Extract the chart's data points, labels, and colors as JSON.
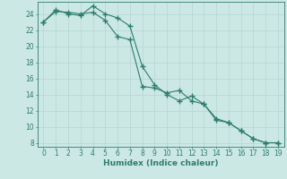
{
  "line1_x": [
    0,
    1,
    2,
    3,
    4,
    5,
    6,
    7,
    8,
    9,
    10,
    11,
    12,
    13,
    14,
    15,
    16,
    17,
    18,
    19
  ],
  "line1_y": [
    23.0,
    24.5,
    24.0,
    23.8,
    25.0,
    24.0,
    23.5,
    22.5,
    17.5,
    15.2,
    14.0,
    13.2,
    13.8,
    12.8,
    10.8,
    10.5,
    9.5,
    8.5,
    8.0,
    8.0
  ],
  "line2_x": [
    0,
    1,
    2,
    3,
    4,
    5,
    6,
    7,
    8,
    9,
    10,
    11,
    12,
    13,
    14,
    15,
    16,
    17,
    18,
    19
  ],
  "line2_y": [
    23.0,
    24.3,
    24.2,
    24.0,
    24.2,
    23.2,
    21.2,
    20.8,
    15.0,
    14.8,
    14.2,
    14.5,
    13.2,
    12.8,
    11.0,
    10.5,
    9.5,
    8.5,
    8.0,
    8.0
  ],
  "line_color": "#2e7d6e",
  "bg_color": "#cce8e4",
  "grid_color": "#b8d8d4",
  "xlabel": "Humidex (Indice chaleur)",
  "xlim": [
    -0.5,
    19.5
  ],
  "ylim": [
    7.5,
    25.5
  ],
  "yticks": [
    8,
    10,
    12,
    14,
    16,
    18,
    20,
    22,
    24
  ],
  "xticks": [
    0,
    1,
    2,
    3,
    4,
    5,
    6,
    7,
    8,
    9,
    10,
    11,
    12,
    13,
    14,
    15,
    16,
    17,
    18,
    19
  ],
  "xlabel_fontsize": 6.5,
  "tick_fontsize": 5.5
}
